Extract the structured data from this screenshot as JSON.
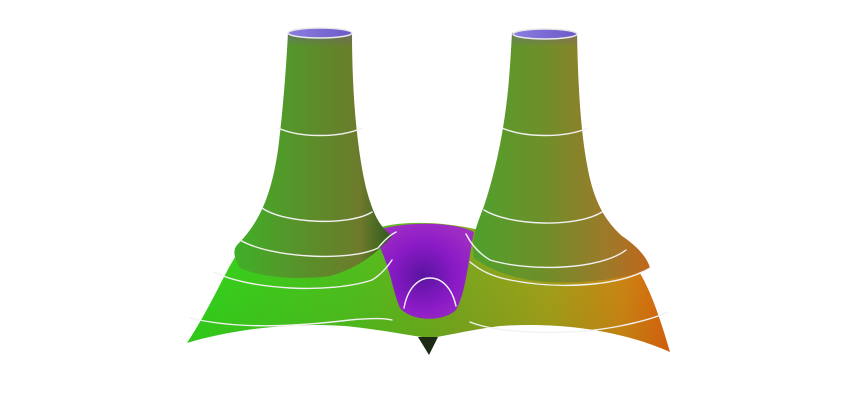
{
  "figure": {
    "kind": "3d-surface-plot",
    "background": "#ffffff",
    "contour_color": "#f2f2f2",
    "colors": {
      "green": "#3ee01a",
      "olive": "#8a9a22",
      "orange": "#e07a10",
      "purple": "#8a18c8",
      "violet": "#6a2fc0",
      "dark": "#1f3a1a"
    }
  }
}
